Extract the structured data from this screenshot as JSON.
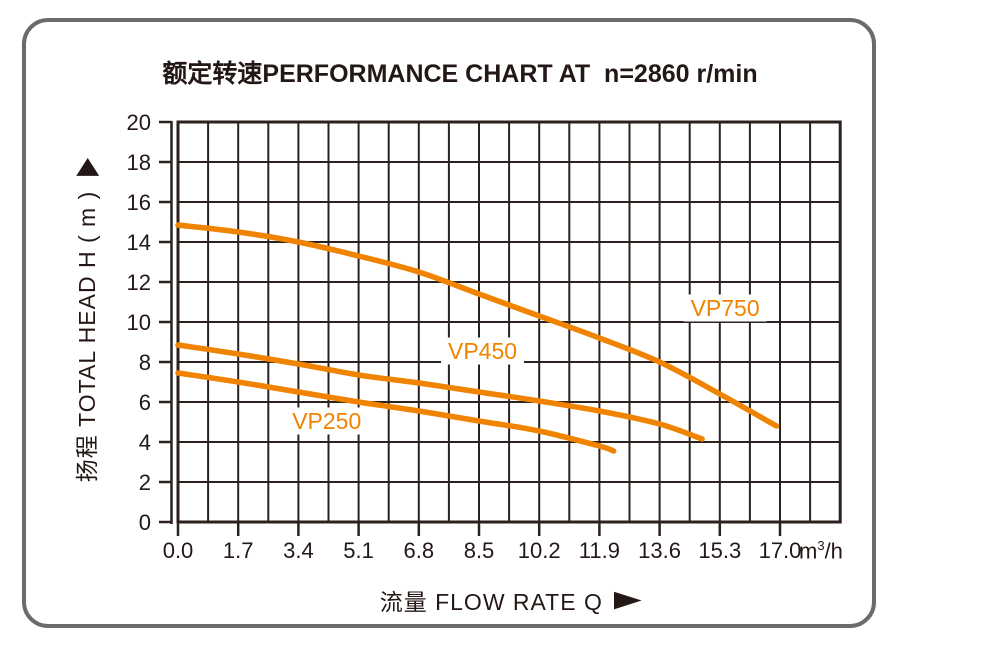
{
  "title": {
    "text": "额定转速PERFORMANCE CHART AT  n=2860 r/min"
  },
  "y_axis": {
    "label": "扬程 TOTAL HEAD H ( m )"
  },
  "x_axis": {
    "label": "流量 FLOW RATE Q",
    "unit_base": "m",
    "unit_exp": "3",
    "unit_rest": "/h"
  },
  "icons": {
    "y_axis_arrow": "up-triangle-icon",
    "x_axis_arrow": "right-triangle-icon"
  },
  "colors": {
    "curve_orange": "#f08300",
    "grid": "#2b211e",
    "text": "#231815",
    "frame_border": "#6e6a67",
    "label_patch": "#ffffff"
  },
  "chart_data": {
    "type": "line",
    "title": "额定转速 PERFORMANCE CHART AT n=2860 r/min",
    "xlabel": "流量 FLOW RATE Q (m3/h)",
    "ylabel": "扬程 TOTAL HEAD H (m)",
    "xlim": [
      0,
      18.7
    ],
    "ylim": [
      0,
      20
    ],
    "x_major_step": 1.7,
    "x_minor_step": 0.85,
    "y_major_step": 2,
    "grid": "on",
    "legend_position": "inline-labels",
    "x_ticks": [
      0.0,
      1.7,
      3.4,
      5.1,
      6.8,
      8.5,
      10.2,
      11.9,
      13.6,
      15.3,
      17.0
    ],
    "x_tick_labels": [
      "0.0",
      "1.7",
      "3.4",
      "5.1",
      "6.8",
      "8.5",
      "10.2",
      "11.9",
      "13.6",
      "15.3",
      "17.0"
    ],
    "y_ticks": [
      0,
      2,
      4,
      6,
      8,
      10,
      12,
      14,
      16,
      18,
      20
    ],
    "y_tick_labels": [
      "0",
      "2",
      "4",
      "6",
      "8",
      "10",
      "12",
      "14",
      "16",
      "18",
      "20"
    ],
    "series": [
      {
        "name": "VP750",
        "color": "#f08300",
        "points": [
          [
            0,
            14.85
          ],
          [
            1.7,
            14.5
          ],
          [
            3.4,
            14.0
          ],
          [
            5.1,
            13.3
          ],
          [
            6.8,
            12.5
          ],
          [
            8.5,
            11.4
          ],
          [
            10.2,
            10.3
          ],
          [
            11.9,
            9.2
          ],
          [
            13.6,
            8.0
          ],
          [
            15.3,
            6.4
          ],
          [
            16.9,
            4.8
          ]
        ],
        "label_at": [
          15.45,
          10.7
        ]
      },
      {
        "name": "VP450",
        "color": "#f08300",
        "points": [
          [
            0,
            8.85
          ],
          [
            1.7,
            8.4
          ],
          [
            3.4,
            7.9
          ],
          [
            5.1,
            7.35
          ],
          [
            6.8,
            6.95
          ],
          [
            8.5,
            6.5
          ],
          [
            10.2,
            6.05
          ],
          [
            11.9,
            5.55
          ],
          [
            13.6,
            4.9
          ],
          [
            14.8,
            4.15
          ]
        ],
        "label_at": [
          8.6,
          8.55
        ]
      },
      {
        "name": "VP250",
        "color": "#f08300",
        "points": [
          [
            0,
            7.45
          ],
          [
            1.7,
            7.0
          ],
          [
            3.4,
            6.5
          ],
          [
            5.1,
            6.0
          ],
          [
            6.8,
            5.55
          ],
          [
            8.5,
            5.05
          ],
          [
            10.2,
            4.55
          ],
          [
            11.9,
            3.8
          ],
          [
            12.3,
            3.55
          ]
        ],
        "label_at": [
          4.2,
          5.05
        ]
      }
    ]
  }
}
